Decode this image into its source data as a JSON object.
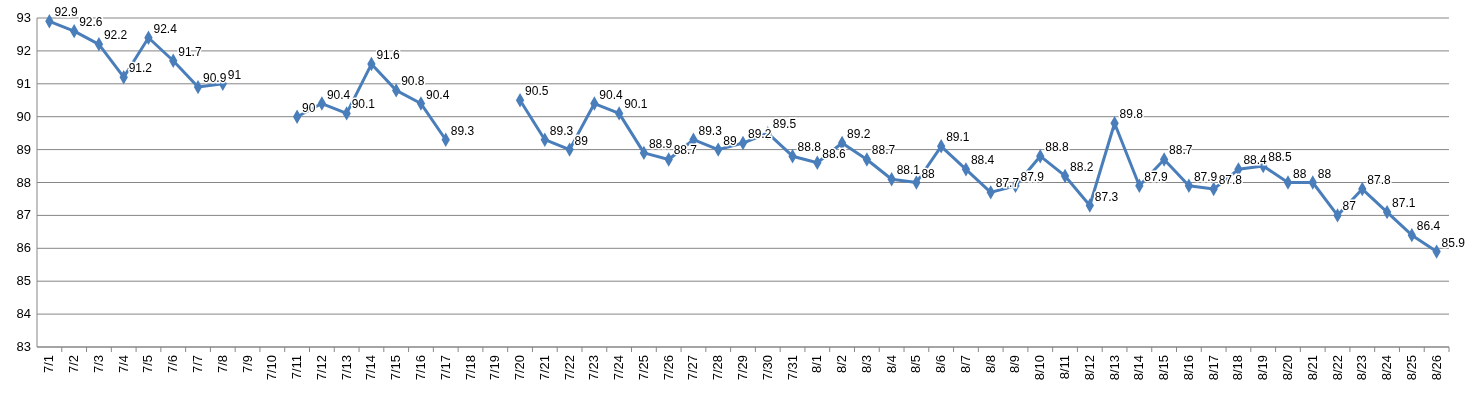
{
  "chart_data": {
    "type": "line",
    "categories": [
      "7/1",
      "7/2",
      "7/3",
      "7/4",
      "7/5",
      "7/6",
      "7/7",
      "7/8",
      "7/9",
      "7/10",
      "7/11",
      "7/12",
      "7/13",
      "7/14",
      "7/15",
      "7/16",
      "7/17",
      "7/18",
      "7/19",
      "7/20",
      "7/21",
      "7/22",
      "7/23",
      "7/24",
      "7/25",
      "7/26",
      "7/27",
      "7/28",
      "7/29",
      "7/30",
      "7/31",
      "8/1",
      "8/2",
      "8/3",
      "8/4",
      "8/5",
      "8/6",
      "8/7",
      "8/8",
      "8/9",
      "8/10",
      "8/11",
      "8/12",
      "8/13",
      "8/14",
      "8/15",
      "8/16",
      "8/17",
      "8/18",
      "8/19",
      "8/20",
      "8/21",
      "8/22",
      "8/23",
      "8/24",
      "8/25",
      "8/26"
    ],
    "series": [
      {
        "color": "#4a7ebb",
        "values": [
          92.9,
          92.6,
          92.2,
          91.2,
          92.4,
          91.7,
          90.9,
          91,
          null,
          null,
          90,
          90.4,
          90.1,
          91.6,
          90.8,
          90.4,
          89.3,
          null,
          null,
          90.5,
          89.3,
          89,
          90.4,
          90.1,
          88.9,
          88.7,
          89.3,
          89,
          89.2,
          89.5,
          88.8,
          88.6,
          89.2,
          88.7,
          88.1,
          88,
          89.1,
          88.4,
          87.7,
          87.9,
          88.8,
          88.2,
          87.3,
          89.8,
          87.9,
          88.7,
          87.9,
          87.8,
          88.4,
          88.5,
          88,
          88,
          87,
          87.8,
          87.1,
          86.4,
          85.9
        ]
      }
    ],
    "ylim": [
      83,
      93
    ],
    "yticks": [
      83,
      84,
      85,
      86,
      87,
      88,
      89,
      90,
      91,
      92,
      93
    ],
    "grid": "y",
    "marker": "diamond",
    "line_style": "solid",
    "data_labels": true
  }
}
